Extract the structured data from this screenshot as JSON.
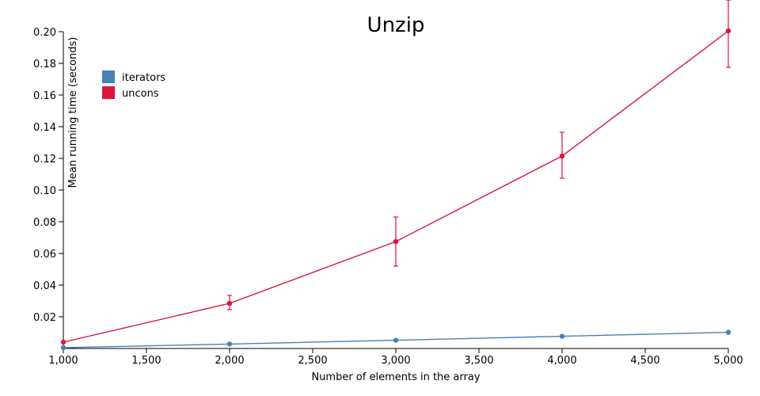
{
  "chart_data": {
    "type": "line",
    "title": "Unzip",
    "xlabel": "Number of elements in the array",
    "ylabel": "Mean running time (seconds)",
    "xlim": [
      1000,
      5000
    ],
    "ylim": [
      0,
      0.2
    ],
    "xticks": [
      1000,
      1500,
      2000,
      2500,
      3000,
      3500,
      4000,
      4500,
      5000
    ],
    "xtick_labels": [
      "1,000",
      "1,500",
      "2,000",
      "2,500",
      "3,000",
      "3,500",
      "4,000",
      "4,500",
      "5,000"
    ],
    "yticks": [
      0.02,
      0.04,
      0.06,
      0.08,
      0.1,
      0.12,
      0.14,
      0.16,
      0.18,
      0.2
    ],
    "ytick_labels": [
      "0.02",
      "0.04",
      "0.06",
      "0.08",
      "0.10",
      "0.12",
      "0.14",
      "0.16",
      "0.18",
      "0.20"
    ],
    "grid": false,
    "legend_position": "top-left",
    "x": [
      1000,
      2000,
      3000,
      4000,
      5000
    ],
    "series": [
      {
        "name": "iterators",
        "color": "#4682b4",
        "values": [
          0.0005,
          0.0028,
          0.0052,
          0.0077,
          0.0102
        ],
        "err_low": [
          0.0005,
          0.0028,
          0.0052,
          0.0077,
          0.0102
        ],
        "err_high": [
          0.0005,
          0.0028,
          0.0052,
          0.0077,
          0.0102
        ]
      },
      {
        "name": "uncons",
        "color": "#dc143c",
        "values": [
          0.004,
          0.0285,
          0.0675,
          0.1215,
          0.2005
        ],
        "err_low": [
          0.004,
          0.0245,
          0.052,
          0.1075,
          0.1775
        ],
        "err_high": [
          0.004,
          0.0335,
          0.083,
          0.1365,
          0.225
        ]
      }
    ]
  }
}
